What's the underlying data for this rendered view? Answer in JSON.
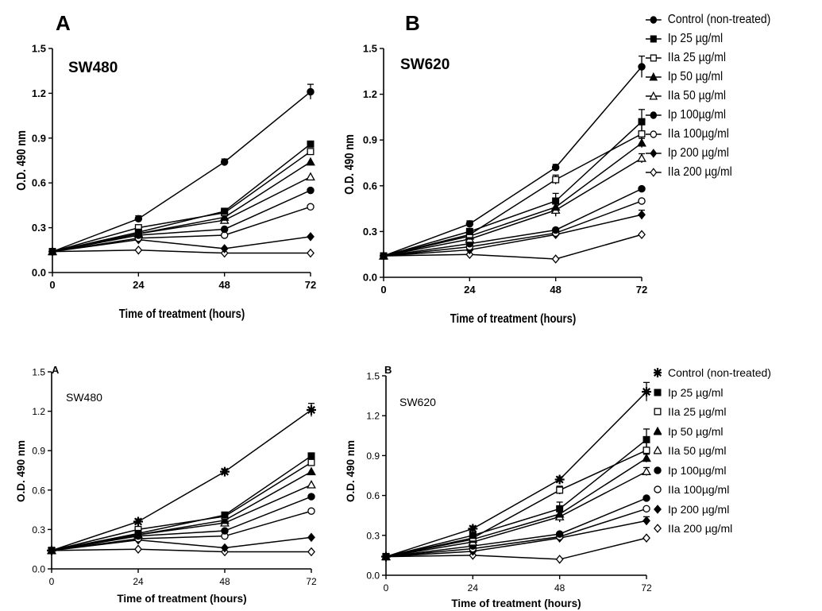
{
  "chart_data": [
    {
      "type": "line",
      "panel_letter": "A",
      "cell_line": "SW480",
      "xlabel": "Time of treatment (hours)",
      "ylabel": "O.D. 490 nm",
      "x": [
        0,
        24,
        48,
        72
      ],
      "xlim": [
        0,
        72
      ],
      "ylim": [
        0,
        1.5
      ],
      "xticks": [
        "0",
        "24",
        "48",
        "72"
      ],
      "yticks": [
        "0.0",
        "0.3",
        "0.6",
        "0.9",
        "1.2",
        "1.5"
      ],
      "grid": false,
      "series": [
        {
          "name": "Control (non-treated)",
          "values": [
            0.14,
            0.36,
            0.74,
            1.21
          ],
          "errors": [
            0,
            0.02,
            0.02,
            0.05
          ]
        },
        {
          "name": "Ip 25 µg/ml",
          "values": [
            0.14,
            0.27,
            0.41,
            0.86
          ],
          "errors": [
            0,
            0.02,
            0.02,
            0.02
          ]
        },
        {
          "name": "IIa 25 µg/ml",
          "values": [
            0.14,
            0.3,
            0.4,
            0.81
          ],
          "errors": [
            0,
            0.02,
            0.02,
            0.02
          ]
        },
        {
          "name": "Ip 50 µg/ml",
          "values": [
            0.14,
            0.26,
            0.37,
            0.74
          ],
          "errors": [
            0,
            0.02,
            0.02,
            0.02
          ]
        },
        {
          "name": "IIa 50 µg/ml",
          "values": [
            0.14,
            0.26,
            0.35,
            0.64
          ],
          "errors": [
            0,
            0.02,
            0.02,
            0.02
          ]
        },
        {
          "name": "Ip 100µg/ml",
          "values": [
            0.14,
            0.25,
            0.29,
            0.55
          ],
          "errors": [
            0,
            0.02,
            0.02,
            0.02
          ]
        },
        {
          "name": "IIa 100µg/ml",
          "values": [
            0.14,
            0.23,
            0.25,
            0.44
          ],
          "errors": [
            0,
            0.02,
            0.02,
            0.02
          ]
        },
        {
          "name": "Ip 200 µg/ml",
          "values": [
            0.14,
            0.22,
            0.16,
            0.24
          ],
          "errors": [
            0,
            0.06,
            0.02,
            0.02
          ]
        },
        {
          "name": "IIa 200 µg/ml",
          "values": [
            0.14,
            0.15,
            0.13,
            0.13
          ],
          "errors": [
            0,
            0.02,
            0.02,
            0.02
          ]
        }
      ]
    },
    {
      "type": "line",
      "panel_letter": "B",
      "cell_line": "SW620",
      "xlabel": "Time of treatment (hours)",
      "ylabel": "O.D. 490 nm",
      "x": [
        0,
        24,
        48,
        72
      ],
      "xlim": [
        0,
        72
      ],
      "ylim": [
        0,
        1.5
      ],
      "xticks": [
        "0",
        "24",
        "48",
        "72"
      ],
      "yticks": [
        "0.0",
        "0.3",
        "0.6",
        "0.9",
        "1.2",
        "1.5"
      ],
      "grid": false,
      "series": [
        {
          "name": "Control (non-treated)",
          "values": [
            0.14,
            0.35,
            0.72,
            1.38
          ],
          "errors": [
            0,
            0.02,
            0.02,
            0.07
          ]
        },
        {
          "name": "Ip 25 µg/ml",
          "values": [
            0.14,
            0.3,
            0.5,
            1.02
          ],
          "errors": [
            0,
            0.02,
            0.05,
            0.08
          ]
        },
        {
          "name": "IIa 25 µg/ml",
          "values": [
            0.14,
            0.28,
            0.64,
            0.94
          ],
          "errors": [
            0,
            0.02,
            0.03,
            0.06
          ]
        },
        {
          "name": "Ip 50 µg/ml",
          "values": [
            0.14,
            0.27,
            0.46,
            0.88
          ],
          "errors": [
            0,
            0.02,
            0.06,
            0.03
          ]
        },
        {
          "name": "IIa 50 µg/ml",
          "values": [
            0.14,
            0.25,
            0.44,
            0.78
          ],
          "errors": [
            0,
            0.02,
            0.04,
            0.03
          ]
        },
        {
          "name": "Ip 100µg/ml",
          "values": [
            0.14,
            0.22,
            0.31,
            0.58
          ],
          "errors": [
            0,
            0.02,
            0.02,
            0.02
          ]
        },
        {
          "name": "IIa 100µg/ml",
          "values": [
            0.14,
            0.2,
            0.29,
            0.5
          ],
          "errors": [
            0,
            0.02,
            0.02,
            0.02
          ]
        },
        {
          "name": "Ip 200 µg/ml",
          "values": [
            0.14,
            0.18,
            0.28,
            0.41
          ],
          "errors": [
            0,
            0.02,
            0.02,
            0.03
          ]
        },
        {
          "name": "IIa 200 µg/ml",
          "values": [
            0.14,
            0.15,
            0.12,
            0.28
          ],
          "errors": [
            0,
            0.02,
            0.02,
            0.02
          ]
        }
      ]
    }
  ],
  "legend": {
    "placement": "right",
    "entries": [
      {
        "label": "Control (non-treated)",
        "marker": "filled-circle",
        "marker_alt": "asterisk",
        "fill": "#000000"
      },
      {
        "label": "Ip 25 µg/ml",
        "marker": "filled-square",
        "fill": "#000000"
      },
      {
        "label": "IIa 25 µg/ml",
        "marker": "open-square",
        "fill": "#ffffff"
      },
      {
        "label": "Ip 50 µg/ml",
        "marker": "filled-triangle",
        "fill": "#000000"
      },
      {
        "label": "IIa 50 µg/ml",
        "marker": "open-triangle",
        "fill": "#ffffff"
      },
      {
        "label": "Ip 100µg/ml",
        "marker": "filled-circle",
        "fill": "#000000"
      },
      {
        "label": "IIa 100µg/ml",
        "marker": "open-circle",
        "fill": "#ffffff"
      },
      {
        "label": "Ip 200 µg/ml",
        "marker": "filled-diamond",
        "fill": "#000000"
      },
      {
        "label": "IIa 200 µg/ml",
        "marker": "open-diamond",
        "fill": "#ffffff"
      }
    ]
  },
  "colors": {
    "ink": "#000000",
    "background": "#ffffff"
  }
}
